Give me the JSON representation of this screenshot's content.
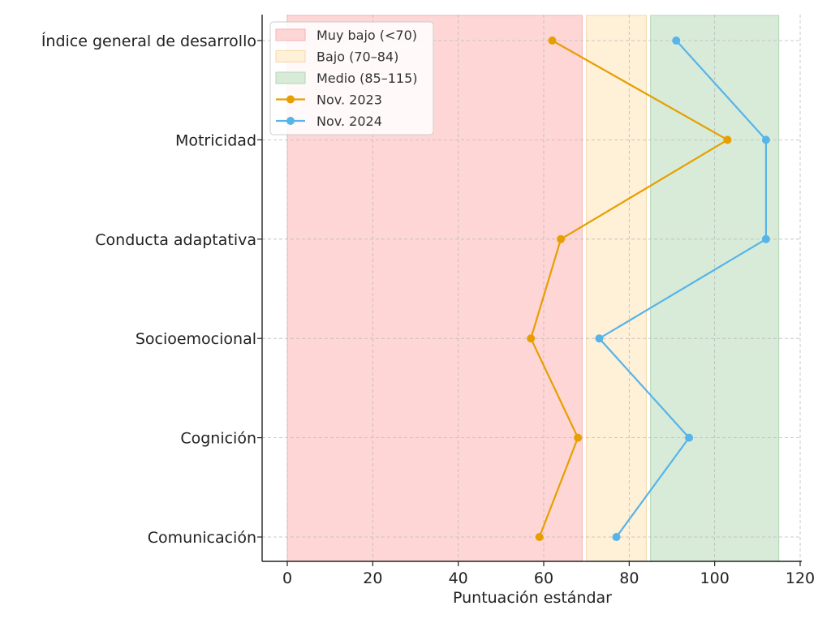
{
  "chart_data": {
    "type": "line",
    "orientation": "horizontal",
    "xlabel": "Puntuación estándar",
    "ylabel": "",
    "xlim": [
      -5,
      120
    ],
    "x_ticks": [
      0,
      20,
      40,
      60,
      80,
      100,
      120
    ],
    "categories": [
      "Índice general de desarrollo",
      "Motricidad",
      "Conducta adaptativa",
      "Socioemocional",
      "Cognición",
      "Comunicación"
    ],
    "bands": [
      {
        "name": "Muy bajo (<70)",
        "from": 0,
        "to": 69,
        "color": "#ffd6d6",
        "edge": "#f2b4b4"
      },
      {
        "name": "Bajo (70–84)",
        "from": 70,
        "to": 84,
        "color": "#fff0d8",
        "edge": "#f5d8a8"
      },
      {
        "name": "Medio (85–115)",
        "from": 85,
        "to": 115,
        "color": "#d8ebd8",
        "edge": "#b5d6b5"
      }
    ],
    "series": [
      {
        "name": "Nov. 2023",
        "color": "#e69f00",
        "values": [
          62,
          103,
          64,
          57,
          68,
          59
        ]
      },
      {
        "name": "Nov. 2024",
        "color": "#56b4e9",
        "values": [
          91,
          112,
          112,
          73,
          94,
          77
        ]
      }
    ],
    "grid": true,
    "legend_position": "top-left"
  }
}
